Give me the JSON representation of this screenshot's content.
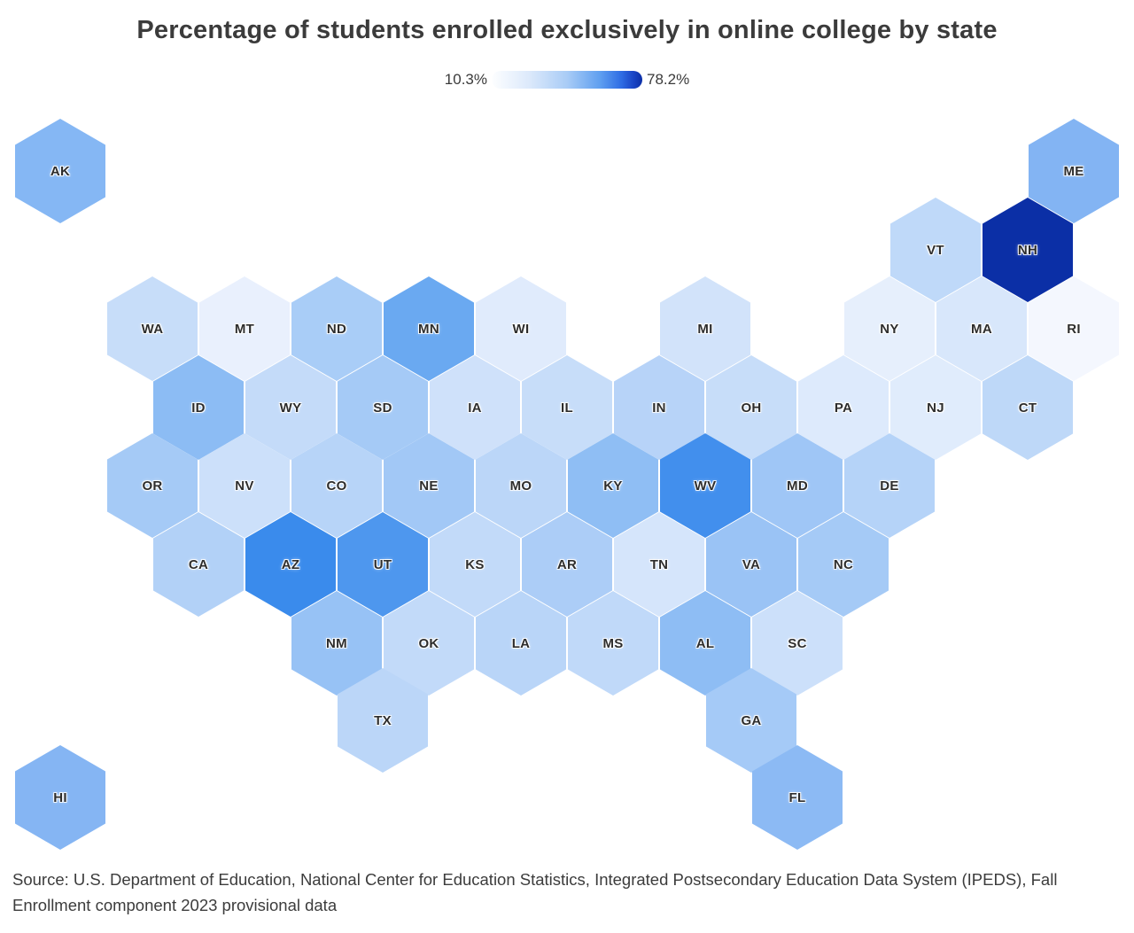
{
  "title": "Percentage of students enrolled exclusively in online college by state",
  "legend": {
    "min_label": "10.3%",
    "max_label": "78.2%",
    "min_color": "#ffffff",
    "max_color": "#0b2fa6"
  },
  "source": "Source: U.S. Department of Education, National Center for Education Statistics, Integrated Postsecondary Education Data System (IPEDS), Fall Enrollment component 2023 provisional data",
  "chart_data": {
    "type": "heatmap",
    "subtype": "hex-tile-cartogram",
    "title": "Percentage of students enrolled exclusively in online college by state",
    "value_unit": "%",
    "value_range": [
      10.3,
      78.2
    ],
    "legend_position": "top-center",
    "colormap": "white-to-dark-blue (higher % = darker blue)",
    "states": [
      {
        "abbr": "AK",
        "col": 0,
        "row": 0,
        "color": "#85B7F4"
      },
      {
        "abbr": "ME",
        "col": 22,
        "row": 0,
        "color": "#83B4F3"
      },
      {
        "abbr": "VT",
        "col": 19,
        "row": 1,
        "color": "#BFD9F9"
      },
      {
        "abbr": "NH",
        "col": 21,
        "row": 1,
        "color": "#0B2FA6"
      },
      {
        "abbr": "WA",
        "col": 2,
        "row": 2,
        "color": "#C7DDF9"
      },
      {
        "abbr": "MT",
        "col": 4,
        "row": 2,
        "color": "#E9F0FD"
      },
      {
        "abbr": "ND",
        "col": 6,
        "row": 2,
        "color": "#A9CDF7"
      },
      {
        "abbr": "MN",
        "col": 8,
        "row": 2,
        "color": "#6AA9F1"
      },
      {
        "abbr": "WI",
        "col": 10,
        "row": 2,
        "color": "#E0EBFC"
      },
      {
        "abbr": "MI",
        "col": 14,
        "row": 2,
        "color": "#D2E3FA"
      },
      {
        "abbr": "NY",
        "col": 18,
        "row": 2,
        "color": "#E6EFFC"
      },
      {
        "abbr": "MA",
        "col": 20,
        "row": 2,
        "color": "#D8E7FB"
      },
      {
        "abbr": "RI",
        "col": 22,
        "row": 2,
        "color": "#F4F7FE"
      },
      {
        "abbr": "ID",
        "col": 3,
        "row": 3,
        "color": "#8CBCF4"
      },
      {
        "abbr": "WY",
        "col": 5,
        "row": 3,
        "color": "#C4DBF9"
      },
      {
        "abbr": "SD",
        "col": 7,
        "row": 3,
        "color": "#A5CAF6"
      },
      {
        "abbr": "IA",
        "col": 9,
        "row": 3,
        "color": "#CFE1FA"
      },
      {
        "abbr": "IL",
        "col": 11,
        "row": 3,
        "color": "#C7DDF9"
      },
      {
        "abbr": "IN",
        "col": 13,
        "row": 3,
        "color": "#B7D3F8"
      },
      {
        "abbr": "OH",
        "col": 15,
        "row": 3,
        "color": "#C7DDF9"
      },
      {
        "abbr": "PA",
        "col": 17,
        "row": 3,
        "color": "#DDEAFC"
      },
      {
        "abbr": "NJ",
        "col": 19,
        "row": 3,
        "color": "#E0ECFC"
      },
      {
        "abbr": "CT",
        "col": 21,
        "row": 3,
        "color": "#BED8F8"
      },
      {
        "abbr": "OR",
        "col": 2,
        "row": 4,
        "color": "#A5CAF6"
      },
      {
        "abbr": "NV",
        "col": 4,
        "row": 4,
        "color": "#CCE0FA"
      },
      {
        "abbr": "CO",
        "col": 6,
        "row": 4,
        "color": "#B7D4F8"
      },
      {
        "abbr": "NE",
        "col": 8,
        "row": 4,
        "color": "#A2C8F6"
      },
      {
        "abbr": "MO",
        "col": 10,
        "row": 4,
        "color": "#BBD6F8"
      },
      {
        "abbr": "KY",
        "col": 12,
        "row": 4,
        "color": "#8FBEF4"
      },
      {
        "abbr": "WV",
        "col": 14,
        "row": 4,
        "color": "#428FED"
      },
      {
        "abbr": "MD",
        "col": 16,
        "row": 4,
        "color": "#9FC6F6"
      },
      {
        "abbr": "DE",
        "col": 18,
        "row": 4,
        "color": "#B5D3F8"
      },
      {
        "abbr": "CA",
        "col": 3,
        "row": 5,
        "color": "#B2D1F7"
      },
      {
        "abbr": "AZ",
        "col": 5,
        "row": 5,
        "color": "#3A8BEC"
      },
      {
        "abbr": "UT",
        "col": 7,
        "row": 5,
        "color": "#4E97EE"
      },
      {
        "abbr": "KS",
        "col": 9,
        "row": 5,
        "color": "#C2DAF9"
      },
      {
        "abbr": "AR",
        "col": 11,
        "row": 5,
        "color": "#ACCDF7"
      },
      {
        "abbr": "TN",
        "col": 13,
        "row": 5,
        "color": "#D5E5FB"
      },
      {
        "abbr": "VA",
        "col": 15,
        "row": 5,
        "color": "#9AC3F5"
      },
      {
        "abbr": "NC",
        "col": 17,
        "row": 5,
        "color": "#A5CAF6"
      },
      {
        "abbr": "NM",
        "col": 6,
        "row": 6,
        "color": "#97C2F5"
      },
      {
        "abbr": "OK",
        "col": 8,
        "row": 6,
        "color": "#C2DAF9"
      },
      {
        "abbr": "LA",
        "col": 10,
        "row": 6,
        "color": "#B9D5F8"
      },
      {
        "abbr": "MS",
        "col": 12,
        "row": 6,
        "color": "#C0D9F9"
      },
      {
        "abbr": "AL",
        "col": 14,
        "row": 6,
        "color": "#8EBDF4"
      },
      {
        "abbr": "SC",
        "col": 16,
        "row": 6,
        "color": "#CCE0FA"
      },
      {
        "abbr": "TX",
        "col": 7,
        "row": 7,
        "color": "#BBD6F8"
      },
      {
        "abbr": "GA",
        "col": 15,
        "row": 7,
        "color": "#A5CAF7"
      },
      {
        "abbr": "HI",
        "col": 0,
        "row": 8,
        "color": "#85B5F3"
      },
      {
        "abbr": "FL",
        "col": 16,
        "row": 8,
        "color": "#8CBAF4"
      }
    ]
  }
}
